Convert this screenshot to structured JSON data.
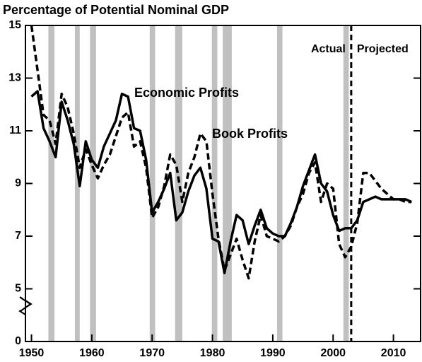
{
  "chart_data": {
    "type": "line",
    "title": "Percentage of Potential Nominal GDP",
    "x": [
      1950,
      1951,
      1952,
      1953,
      1954,
      1955,
      1956,
      1957,
      1958,
      1959,
      1960,
      1961,
      1962,
      1963,
      1964,
      1965,
      1966,
      1967,
      1968,
      1969,
      1970,
      1971,
      1972,
      1973,
      1974,
      1975,
      1976,
      1977,
      1978,
      1979,
      1980,
      1981,
      1982,
      1983,
      1984,
      1985,
      1986,
      1987,
      1988,
      1989,
      1990,
      1991,
      1992,
      1993,
      1994,
      1995,
      1996,
      1997,
      1998,
      1999,
      2000,
      2001,
      2002,
      2003,
      2004,
      2005,
      2006,
      2007,
      2008,
      2009,
      2010,
      2011,
      2012,
      2013
    ],
    "series": [
      {
        "name": "Economic Profits",
        "color": "#000000",
        "dash": false,
        "values": [
          12.3,
          12.5,
          11.1,
          10.6,
          10.0,
          12.1,
          11.4,
          10.5,
          8.9,
          10.6,
          9.9,
          9.6,
          10.4,
          10.9,
          11.4,
          12.4,
          12.3,
          11.1,
          11.0,
          9.9,
          7.9,
          8.3,
          8.8,
          9.4,
          7.6,
          7.9,
          8.7,
          9.3,
          9.6,
          8.8,
          6.9,
          6.8,
          5.6,
          6.8,
          7.8,
          7.6,
          6.7,
          7.4,
          8.0,
          7.3,
          7.1,
          7.0,
          7.0,
          7.5,
          8.1,
          8.9,
          9.5,
          10.1,
          9.0,
          8.7,
          7.8,
          7.2,
          7.3,
          7.3,
          7.6,
          8.3,
          8.4,
          8.5,
          8.4,
          8.4,
          8.4,
          8.4,
          8.4,
          8.3
        ]
      },
      {
        "name": "Book Profits",
        "color": "#000000",
        "dash": true,
        "values": [
          15.0,
          13.3,
          11.6,
          11.4,
          10.5,
          12.4,
          11.9,
          10.9,
          9.6,
          10.3,
          9.7,
          9.2,
          9.7,
          10.1,
          10.8,
          11.5,
          11.7,
          10.4,
          10.6,
          9.6,
          7.7,
          8.1,
          8.9,
          10.1,
          9.7,
          8.3,
          9.4,
          10.0,
          10.9,
          10.6,
          8.6,
          6.9,
          5.7,
          6.3,
          6.9,
          6.1,
          5.4,
          6.8,
          7.8,
          7.0,
          6.9,
          6.8,
          7.0,
          7.4,
          8.1,
          8.6,
          9.4,
          9.8,
          8.3,
          9.0,
          8.8,
          6.7,
          6.2,
          6.6,
          7.5,
          9.4,
          9.4,
          9.1,
          8.8,
          8.6,
          8.4,
          8.4,
          8.3,
          8.3
        ]
      }
    ],
    "xlim": [
      1949,
      2014.5
    ],
    "xticks": [
      1950,
      1960,
      1970,
      1980,
      1990,
      2000,
      2010
    ],
    "ylim": [
      0,
      15
    ],
    "yticks": [
      0,
      5,
      7,
      9,
      11,
      13,
      15
    ],
    "axis_break": true,
    "shaded_periods": [
      [
        1952.8,
        1953.8
      ],
      [
        1957.2,
        1958.0
      ],
      [
        1959.7,
        1960.7
      ],
      [
        1969.6,
        1970.5
      ],
      [
        1973.8,
        1975.0
      ],
      [
        1979.9,
        1980.8
      ],
      [
        1981.7,
        1983.2
      ],
      [
        1990.7,
        1991.6
      ],
      [
        2001.7,
        2002.6
      ]
    ],
    "shade_color": "#c0c0c0",
    "projection_start": 2003,
    "annotations": [
      "Actual",
      "Projected"
    ]
  }
}
